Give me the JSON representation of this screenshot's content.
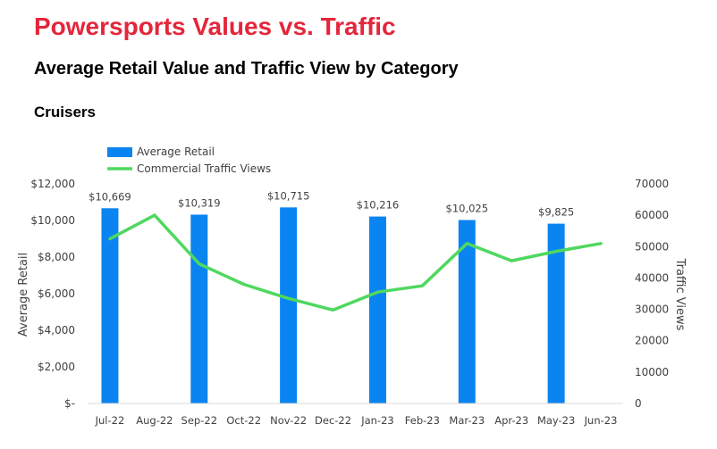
{
  "header": {
    "title": "Powersports Values vs. Traffic",
    "subtitle": "Average Retail Value and Traffic View by Category",
    "section": "Cruisers"
  },
  "colors": {
    "title": "#e3263b",
    "bar": "#0a84f0",
    "line": "#4fd85f",
    "text": "#404040"
  },
  "chart_data": {
    "type": "bar",
    "categories": [
      "Jul-22",
      "Aug-22",
      "Sep-22",
      "Oct-22",
      "Nov-22",
      "Dec-22",
      "Jan-23",
      "Feb-23",
      "Mar-23",
      "Apr-23",
      "May-23",
      "Jun-23"
    ],
    "series": [
      {
        "name": "Average Retail",
        "type": "bar",
        "axis": "left",
        "values": [
          10669,
          null,
          10319,
          null,
          10715,
          null,
          10216,
          null,
          10025,
          null,
          9825,
          null
        ],
        "labels": [
          "$10,669",
          "",
          "$10,319",
          "",
          "$10,715",
          "",
          "$10,216",
          "",
          "$10,025",
          "",
          "$9,825",
          ""
        ]
      },
      {
        "name": "Commercial Traffic Views",
        "type": "line",
        "axis": "right",
        "values": [
          52500,
          60000,
          44500,
          38000,
          33500,
          29800,
          35500,
          37500,
          51000,
          45500,
          48500,
          51000
        ]
      }
    ],
    "ylabel": "Average Retail",
    "y2label": "Traffic Views",
    "ylim": [
      0,
      12000
    ],
    "y2lim": [
      0,
      70000
    ],
    "yticks": [
      "$-",
      "$2,000",
      "$4,000",
      "$6,000",
      "$8,000",
      "$10,000",
      "$12,000"
    ],
    "y2ticks": [
      "0",
      "10000",
      "20000",
      "30000",
      "40000",
      "50000",
      "60000",
      "70000"
    ],
    "legend_position": "top-left"
  }
}
